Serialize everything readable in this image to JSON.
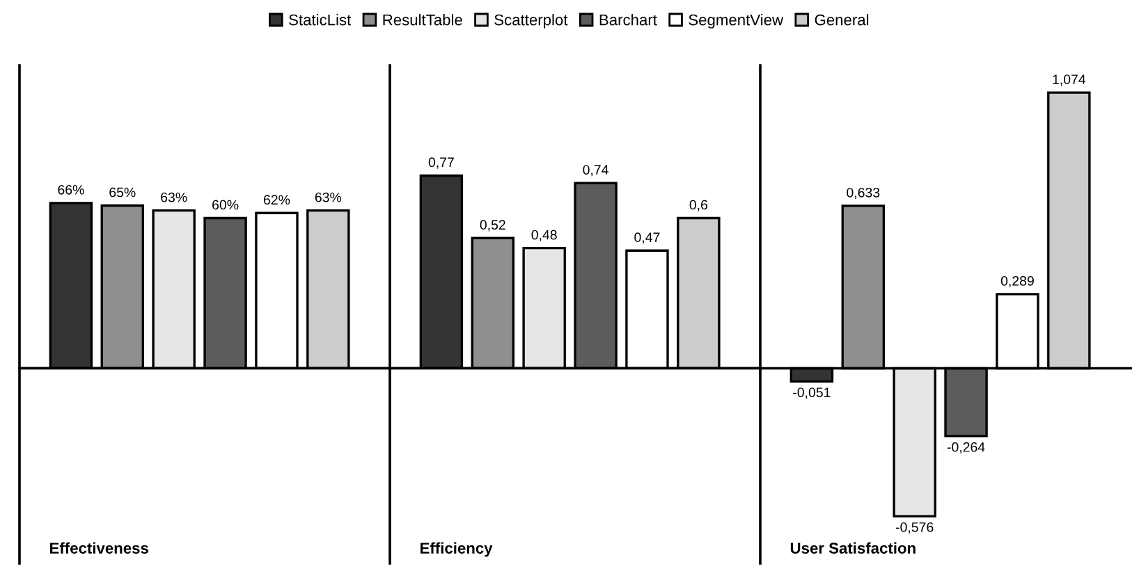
{
  "chart_data": [
    {
      "type": "bar",
      "xlabel": "Effectiveness",
      "categories": [
        null
      ],
      "legend": "top",
      "tick_labels": false,
      "ylim": [
        -78,
        121
      ],
      "series": [
        {
          "name": "StaticList",
          "color": "#333333",
          "values": [
            66
          ],
          "value_labels": [
            "66%"
          ]
        },
        {
          "name": "ResultTable",
          "color": "#8f8f8f",
          "values": [
            65
          ],
          "value_labels": [
            "65%"
          ]
        },
        {
          "name": "Scatterplot",
          "color": "#e6e6e6",
          "values": [
            63
          ],
          "value_labels": [
            "63%"
          ]
        },
        {
          "name": "Barchart",
          "color": "#5c5c5c",
          "values": [
            60
          ],
          "value_labels": [
            "60%"
          ]
        },
        {
          "name": "SegmentView",
          "color": "#ffffff",
          "values": [
            62
          ],
          "value_labels": [
            "62%"
          ]
        },
        {
          "name": "General",
          "color": "#cccccc",
          "values": [
            63
          ],
          "value_labels": [
            "63%"
          ]
        }
      ]
    },
    {
      "type": "bar",
      "xlabel": "Efficiency",
      "categories": [
        null
      ],
      "tick_labels": false,
      "ylim": [
        -0.78,
        1.21
      ],
      "series": [
        {
          "color": "#333333",
          "values": [
            0.77
          ],
          "value_labels": [
            "0,77"
          ]
        },
        {
          "color": "#8f8f8f",
          "values": [
            0.52
          ],
          "value_labels": [
            "0,52"
          ]
        },
        {
          "color": "#e6e6e6",
          "values": [
            0.48
          ],
          "value_labels": [
            "0,48"
          ]
        },
        {
          "color": "#5c5c5c",
          "values": [
            0.74
          ],
          "value_labels": [
            "0,74"
          ]
        },
        {
          "color": "#ffffff",
          "values": [
            0.47
          ],
          "value_labels": [
            "0,47"
          ]
        },
        {
          "color": "#cccccc",
          "values": [
            0.6
          ],
          "value_labels": [
            "0,6"
          ]
        }
      ]
    },
    {
      "type": "bar",
      "xlabel": "User Satisfaction",
      "categories": [
        null
      ],
      "tick_labels": false,
      "ylim": [
        -0.76,
        1.18
      ],
      "series": [
        {
          "color": "#333333",
          "values": [
            -0.051
          ],
          "value_labels": [
            "-0,051"
          ]
        },
        {
          "color": "#8f8f8f",
          "values": [
            0.633
          ],
          "value_labels": [
            "0,633"
          ]
        },
        {
          "color": "#e6e6e6",
          "values": [
            -0.576
          ],
          "value_labels": [
            "-0,576"
          ]
        },
        {
          "color": "#5c5c5c",
          "values": [
            -0.264
          ],
          "value_labels": [
            "-0,264"
          ]
        },
        {
          "color": "#ffffff",
          "values": [
            0.289
          ],
          "value_labels": [
            "0,289"
          ]
        },
        {
          "color": "#cccccc",
          "values": [
            1.074
          ],
          "value_labels": [
            "1,074"
          ]
        }
      ]
    }
  ]
}
